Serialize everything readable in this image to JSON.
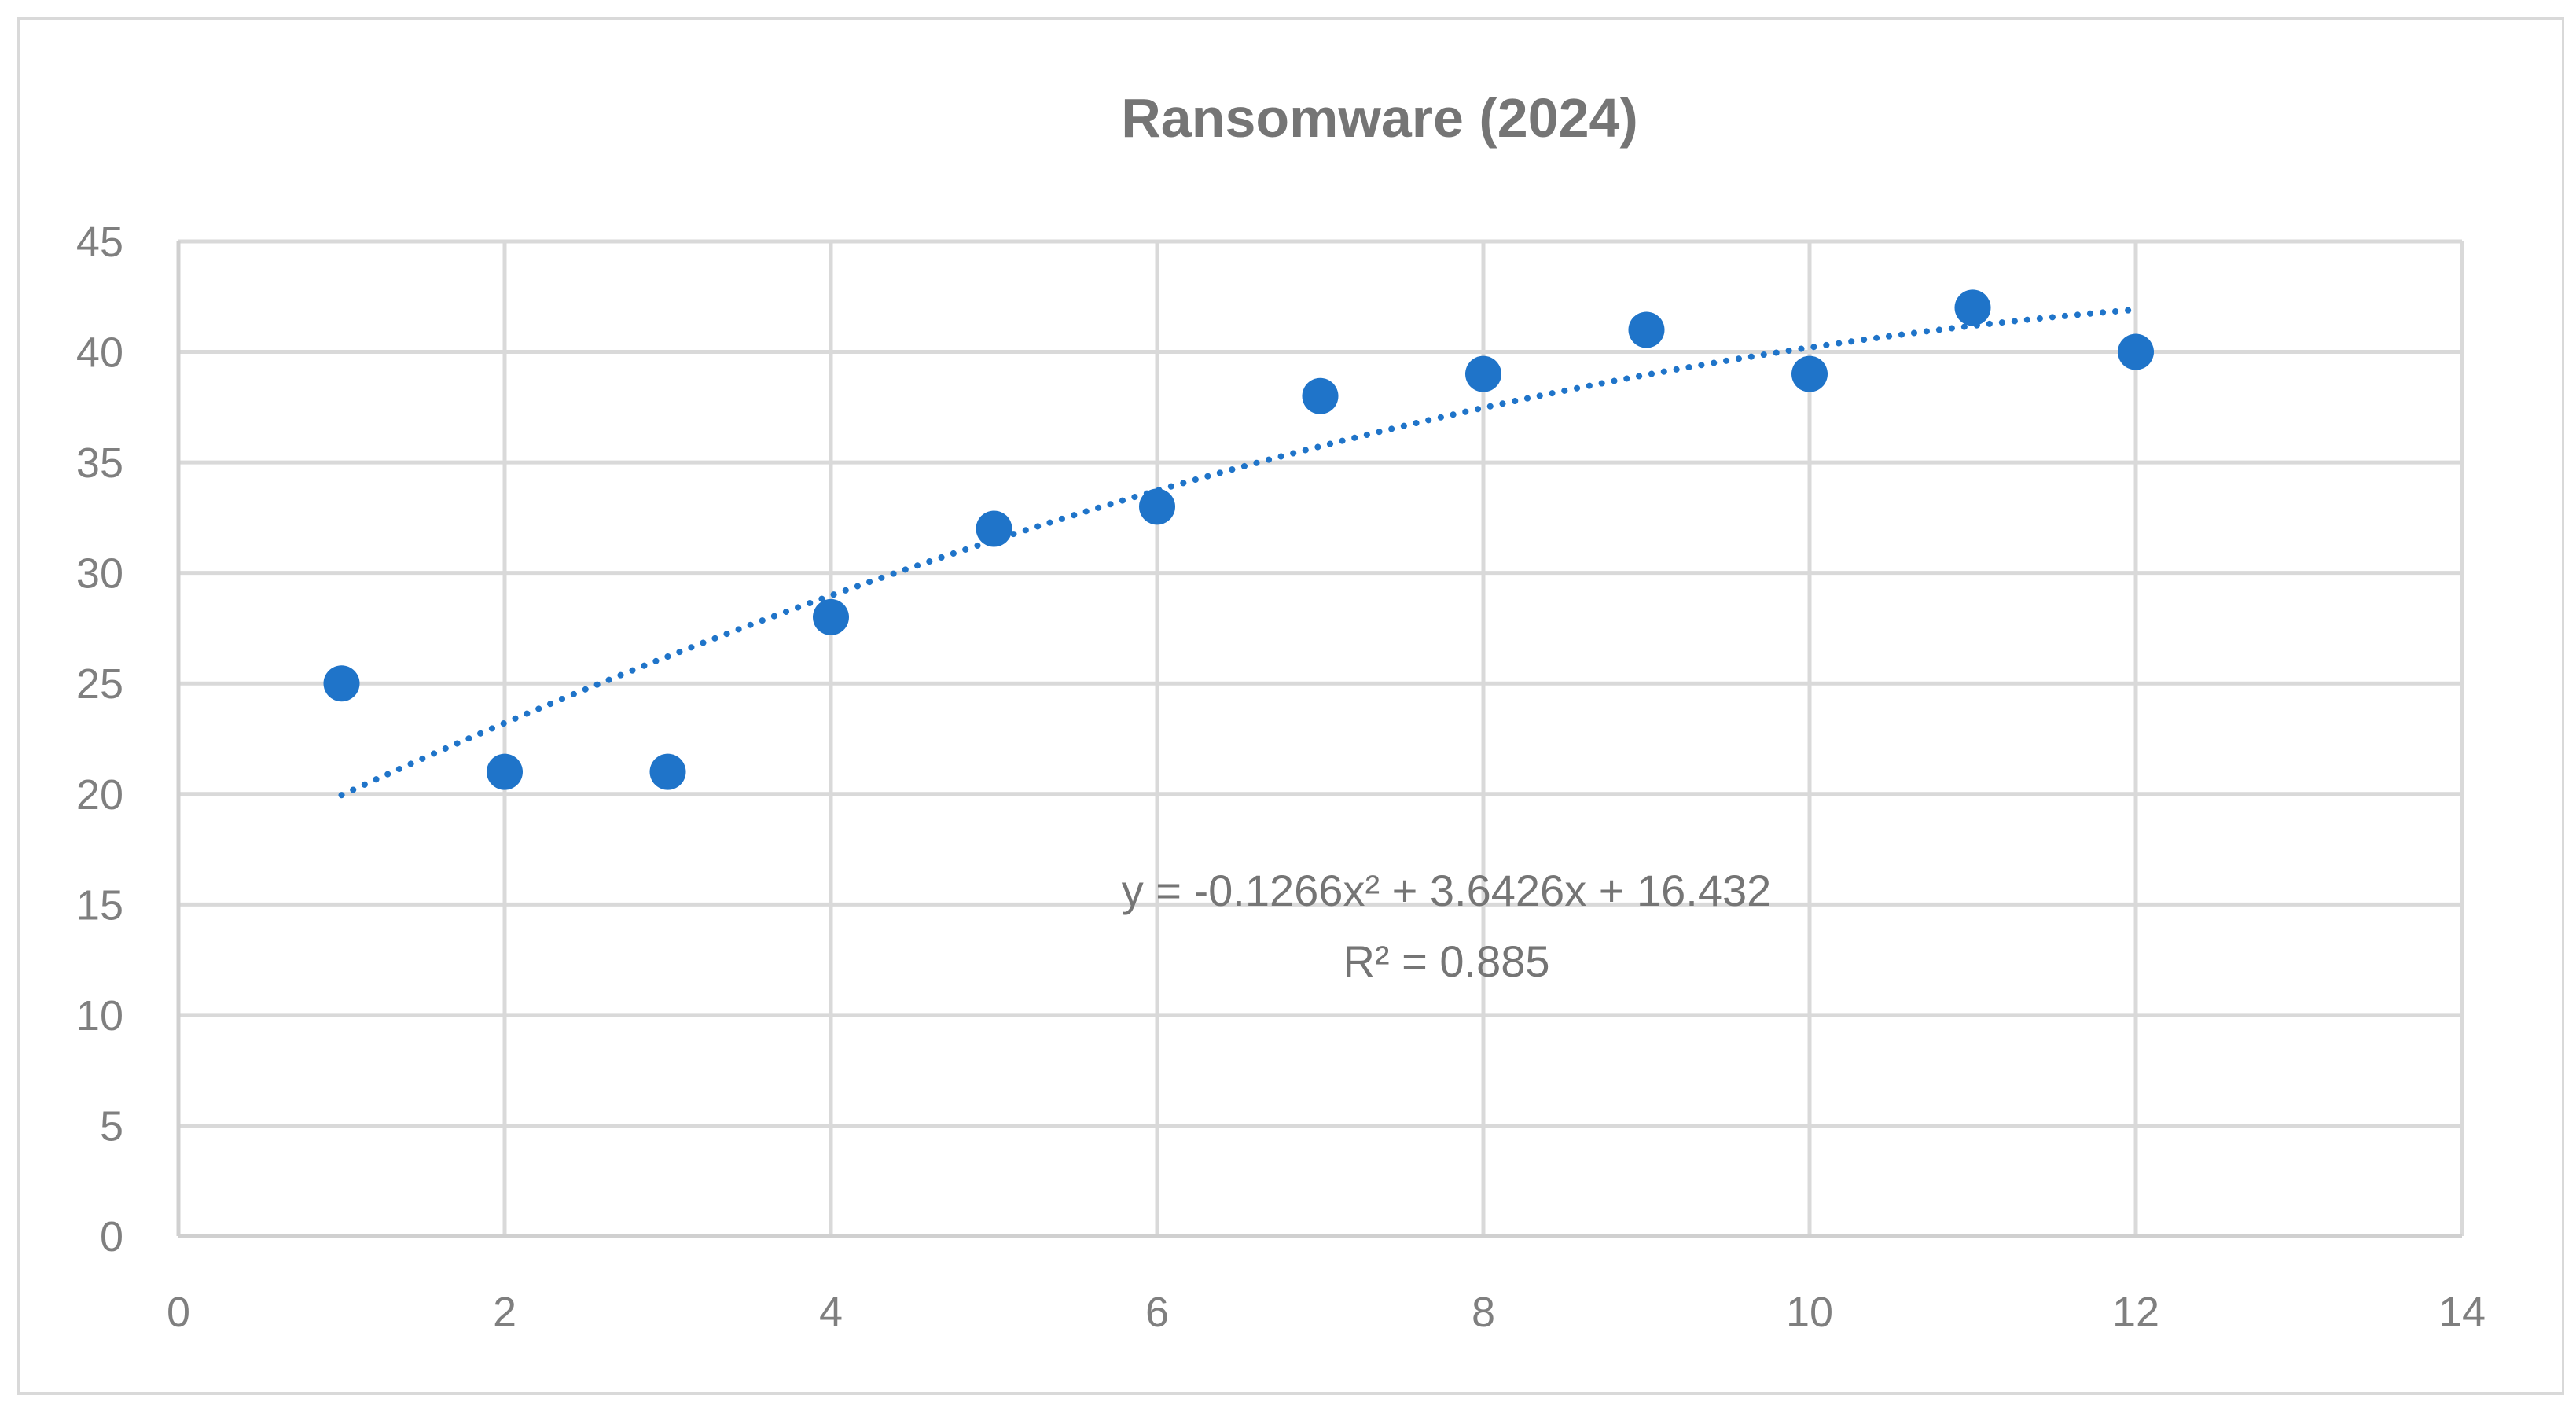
{
  "chart_data": {
    "type": "scatter",
    "title": "Ransomware (2024)",
    "xlabel": "",
    "ylabel": "",
    "xlim": [
      0,
      14
    ],
    "ylim": [
      0,
      45
    ],
    "x_ticks": [
      "0",
      "2",
      "4",
      "6",
      "8",
      "10",
      "12",
      "14"
    ],
    "y_ticks": [
      "0",
      "5",
      "10",
      "15",
      "20",
      "25",
      "30",
      "35",
      "40",
      "45"
    ],
    "grid": true,
    "series": [
      {
        "x": [
          1,
          2,
          3,
          4,
          5,
          6,
          7,
          8,
          9,
          10,
          11,
          12
        ],
        "y": [
          25,
          21,
          21,
          28,
          32,
          33,
          38,
          39,
          41,
          39,
          42,
          40
        ],
        "color": "#1f74c9"
      }
    ],
    "trendline": {
      "type": "polynomial",
      "coefficients": [
        -0.1266,
        3.6426,
        16.432
      ],
      "x_range": [
        1,
        12
      ],
      "equation": "y = -0.1266x² + 3.6426x + 16.432",
      "r_squared": "R² = 0.885",
      "style": "dotted",
      "color": "#1f74c9"
    }
  }
}
